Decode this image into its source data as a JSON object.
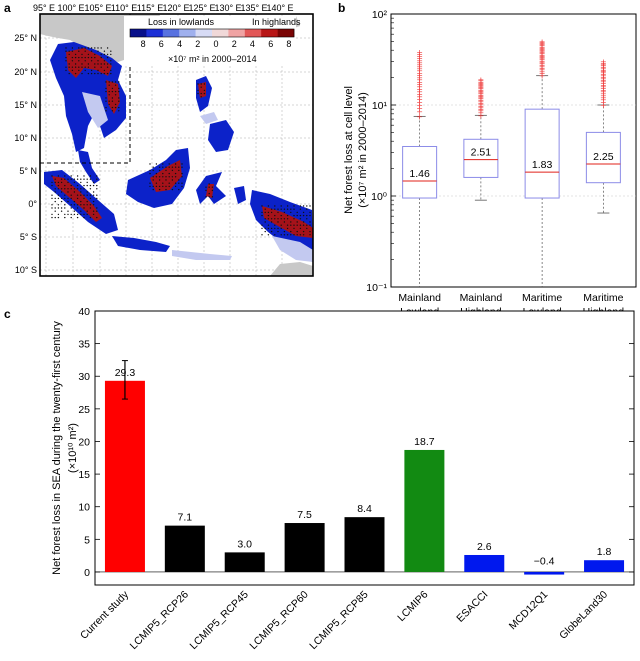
{
  "panel_a": {
    "letter": "a",
    "lon_labels": [
      "95° E",
      "100° E",
      "105° E",
      "110° E",
      "115° E",
      "120° E",
      "125° E",
      "130° E",
      "135° E",
      "140° E"
    ],
    "lat_labels": [
      "25° N",
      "20° N",
      "15° N",
      "10° N",
      "5° N",
      "0°",
      "5° S",
      "10° S"
    ],
    "legend": {
      "left_title": "Loss in lowlands",
      "right_title": "In highlands",
      "ticks": [
        "8",
        "6",
        "4",
        "2",
        "0",
        "2",
        "4",
        "6",
        "8"
      ],
      "unit": "×10⁷ m² in 2000–2014",
      "colors": [
        "#08108a",
        "#1c2fd6",
        "#5872e0",
        "#9fb0ee",
        "#d7dbf5",
        "#f0d8d8",
        "#efa3a3",
        "#e25757",
        "#b81616",
        "#7a0404"
      ]
    },
    "colors": {
      "land_none": "#c8c8c8",
      "lowland": "#0c22c9",
      "highland": "#a5121a",
      "light": "#c3c9f0"
    }
  },
  "panel_b": {
    "letter": "b",
    "chart_data": {
      "type": "box",
      "title": "",
      "ylabel_line1": "Net forest loss at cell level",
      "ylabel_line2": "(×10⁷ m² in 2000–2014)",
      "yscale": "log",
      "ylim": [
        0.1,
        100
      ],
      "yticks": [
        "10⁻¹",
        "10⁰",
        "10¹",
        "10²"
      ],
      "categories": [
        {
          "region": "Mainland",
          "zone": "Lowland",
          "zone_color": "#1a2ee0",
          "q1": 0.95,
          "median": 1.46,
          "q3": 3.5,
          "whisker_low": 0.1,
          "whisker_high": 7.5,
          "outlier_max": 38,
          "median_label": "1.46"
        },
        {
          "region": "Mainland",
          "zone": "Highland",
          "zone_color": "#e0201a",
          "q1": 1.6,
          "median": 2.51,
          "q3": 4.2,
          "whisker_low": 0.9,
          "whisker_high": 7.7,
          "outlier_max": 19,
          "median_label": "2.51"
        },
        {
          "region": "Maritime",
          "zone": "Lowland",
          "zone_color": "#1a2ee0",
          "q1": 0.95,
          "median": 1.83,
          "q3": 9.0,
          "whisker_low": 0.1,
          "whisker_high": 21,
          "outlier_max": 50,
          "median_label": "1.83"
        },
        {
          "region": "Maritime",
          "zone": "Highland",
          "zone_color": "#e0201a",
          "q1": 1.4,
          "median": 2.25,
          "q3": 5.0,
          "whisker_low": 0.65,
          "whisker_high": 10,
          "outlier_max": 30,
          "median_label": "2.25"
        }
      ],
      "box_color": "#8c8ce8",
      "median_color": "#e0201a",
      "outlier_color": "#ee3a3a"
    }
  },
  "panel_c": {
    "letter": "c",
    "chart_data": {
      "type": "bar",
      "ylabel_line1": "Net forest loss in SEA during the twenty-first century",
      "ylabel_line2": "(×10¹⁰ m²)",
      "ylim": [
        -2,
        40
      ],
      "yticks": [
        0,
        5,
        10,
        15,
        20,
        25,
        30,
        35,
        40
      ],
      "categories": [
        "Current study",
        "LCMIP5_RCP26",
        "LCMIP5_RCP45",
        "LCMIP5_RCP60",
        "LCMIP5_RCP85",
        "LCMIP6",
        "ESACCI",
        "MCD12Q1",
        "GlobeLand30"
      ],
      "values": [
        29.3,
        7.1,
        3.0,
        7.5,
        8.4,
        18.7,
        2.6,
        -0.4,
        1.8
      ],
      "labels": [
        "29.3",
        "7.1",
        "3.0",
        "7.5",
        "8.4",
        "18.7",
        "2.6",
        "−0.4",
        "1.8"
      ],
      "colors": [
        "#ff0000",
        "#000000",
        "#000000",
        "#000000",
        "#000000",
        "#128a12",
        "#0018ee",
        "#0018ee",
        "#0018ee"
      ],
      "error_bar": {
        "category": "Current study",
        "low": 26.5,
        "high": 32.4
      },
      "label_color": "#e0201a"
    }
  }
}
